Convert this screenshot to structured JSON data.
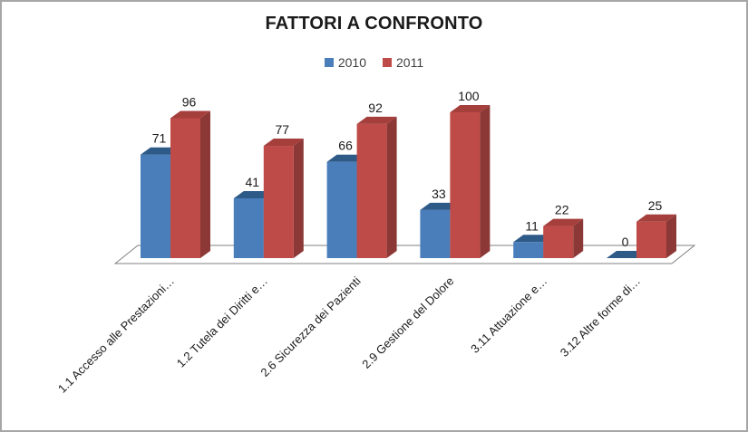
{
  "title": "FATTORI A CONFRONTO",
  "chart_data": {
    "type": "bar",
    "style": "3d-clustered-column",
    "title": "FATTORI A CONFRONTO",
    "categories": [
      "1.1 Accesso alle Prestazioni…",
      "1.2 Tutela dei Diritti e…",
      "2.6 Sicurezza dei Pazienti",
      "2.9 Gestione del Dolore",
      "3.11 Attuazione e…",
      "3.12 Altre forme di…"
    ],
    "series": [
      {
        "name": "2010",
        "color": "#4A7EBB",
        "top_color": "#2E5A88",
        "side_color": "#3A6EA8",
        "values": [
          71,
          41,
          66,
          33,
          11,
          0
        ]
      },
      {
        "name": "2011",
        "color": "#BE4B48",
        "top_color": "#A43F3C",
        "side_color": "#8C3836",
        "values": [
          96,
          77,
          92,
          100,
          22,
          25
        ]
      }
    ],
    "value_labels_shown": true,
    "ylim": [
      0,
      100
    ],
    "yaxis_shown": false,
    "gridlines": false,
    "legend_position": "top",
    "floor_line_color": "#808080",
    "text_color": "#1a1a1a"
  }
}
